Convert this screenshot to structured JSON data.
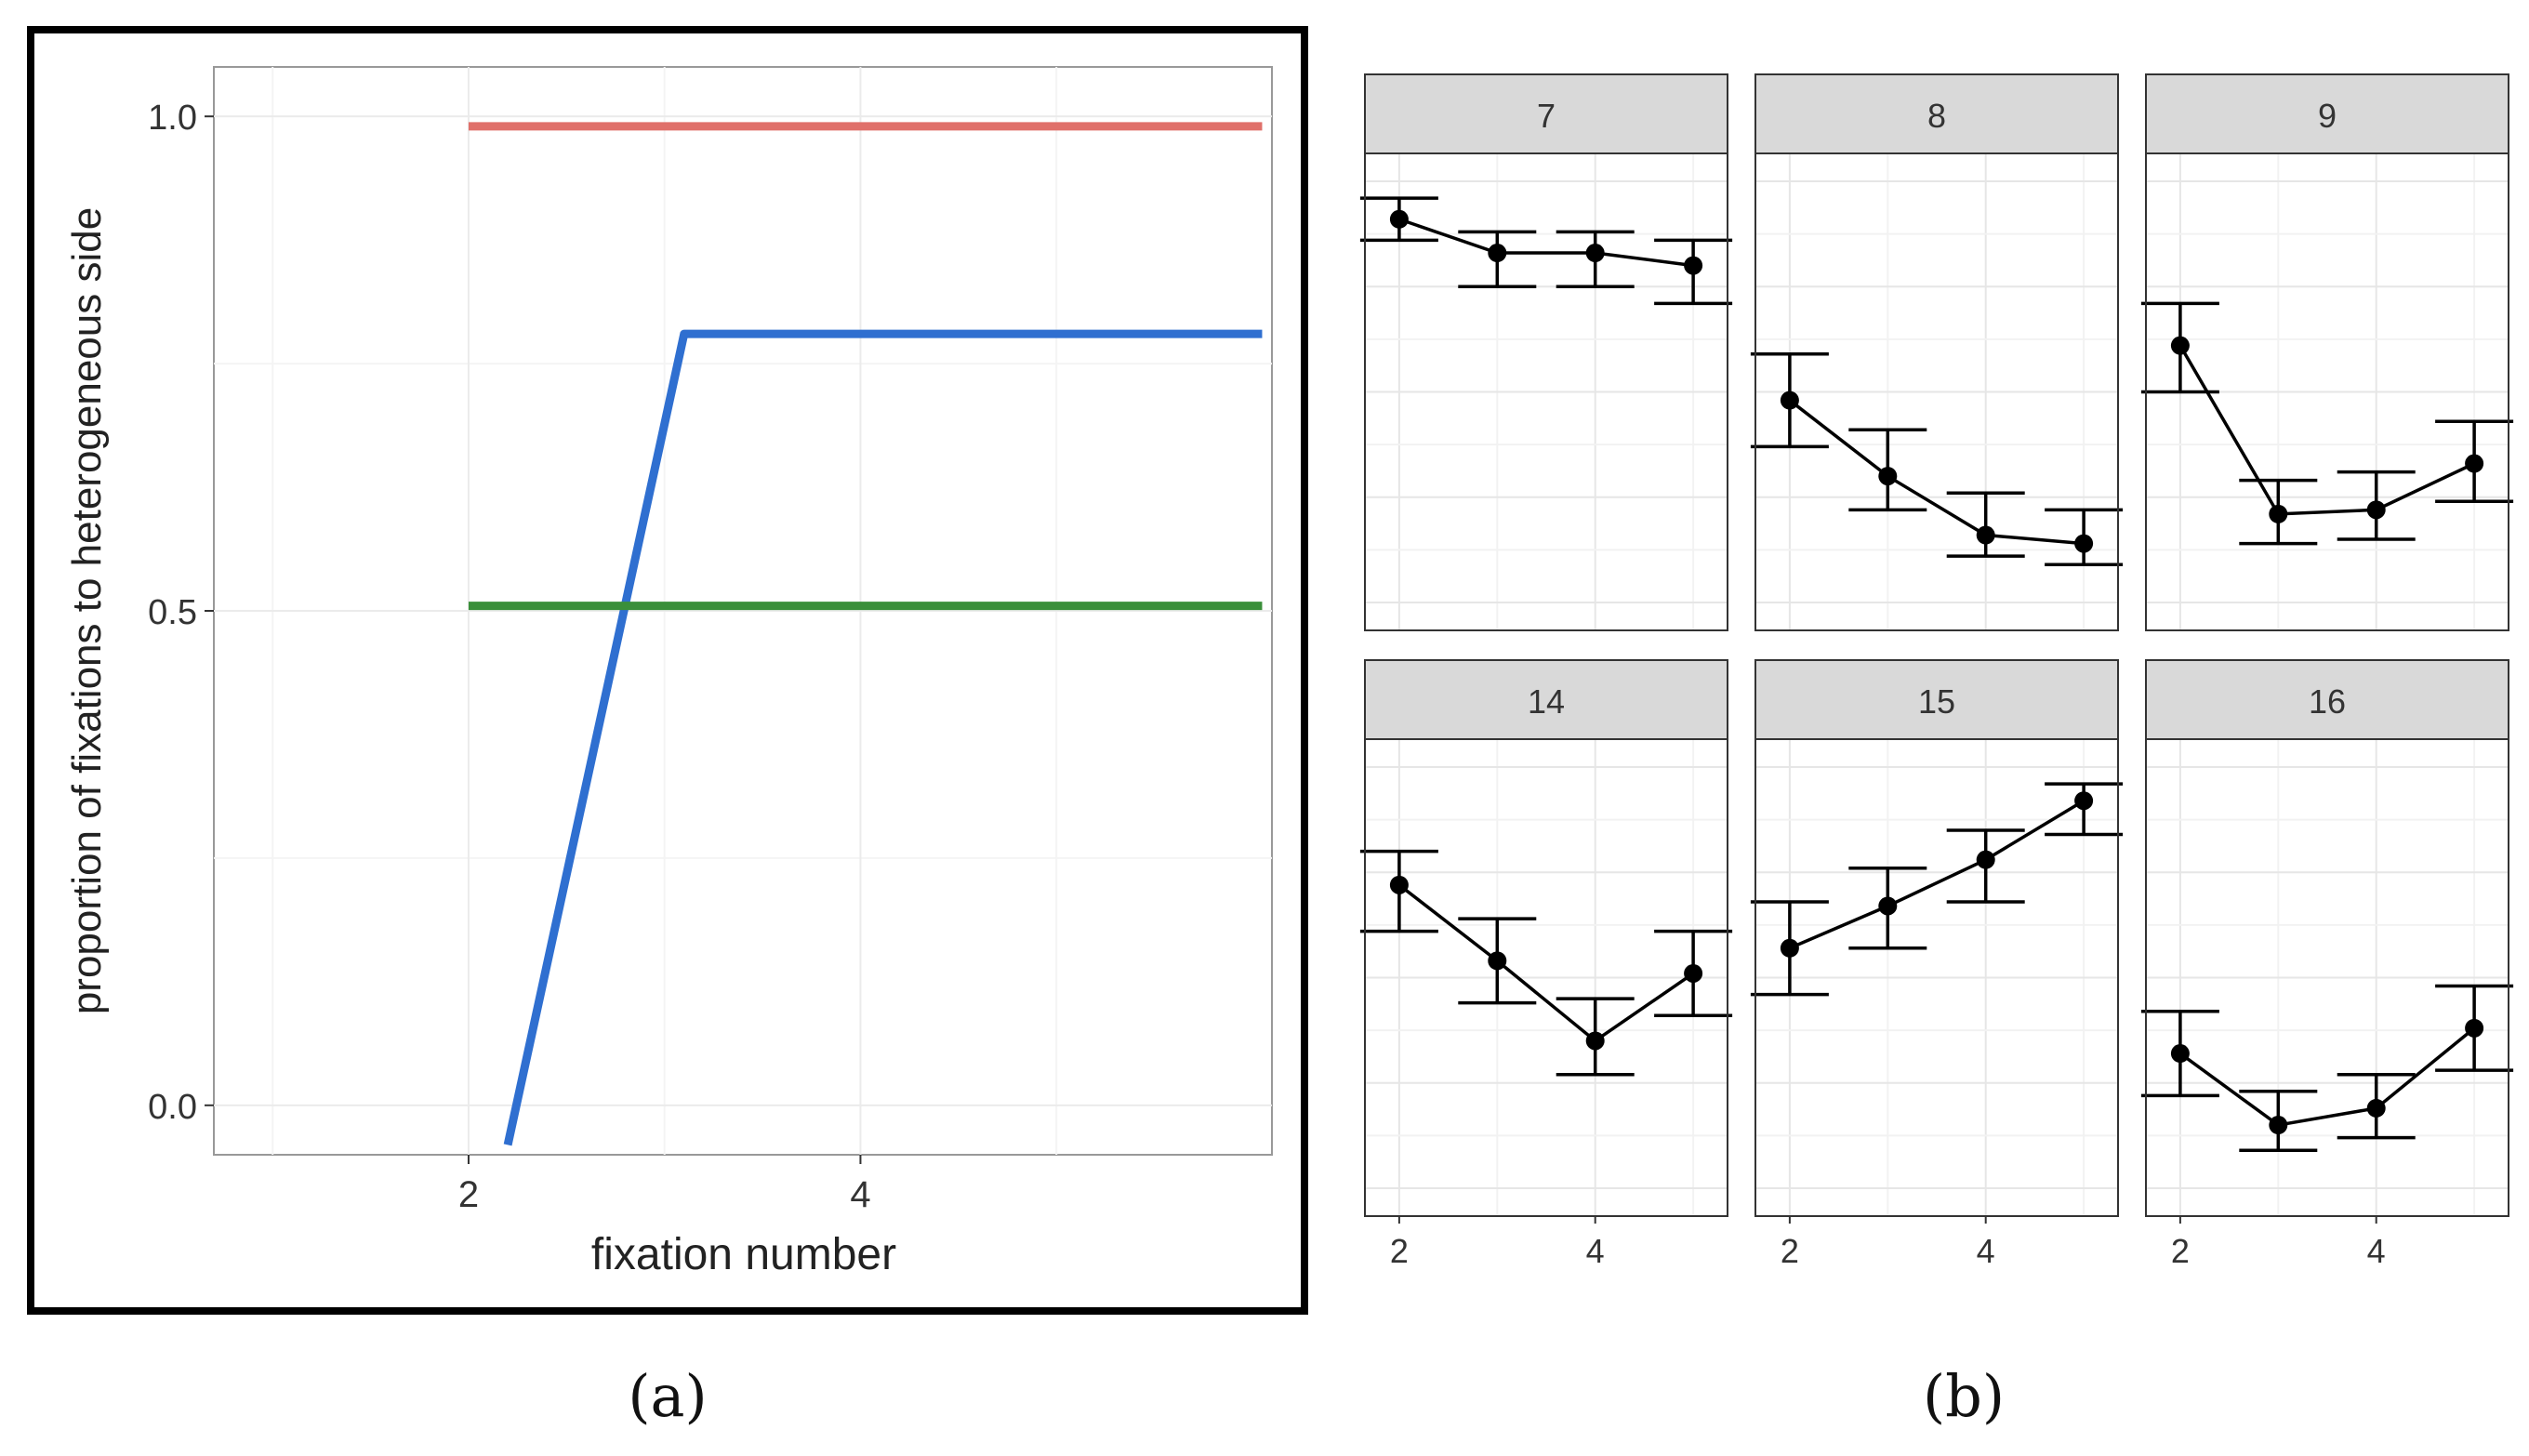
{
  "panel_a": {
    "caption": "(a)",
    "chart_data": {
      "type": "line",
      "title": "",
      "xlabel": "fixation number",
      "ylabel": "proportion of fixations to heterogeneous side",
      "xlim": [
        0.7,
        6.1
      ],
      "ylim": [
        -0.05,
        1.05
      ],
      "x_ticks": [
        2,
        4
      ],
      "y_ticks": [
        0.0,
        0.5,
        1.0
      ],
      "y_tick_labels": [
        "0.0",
        "0.5",
        "1.0"
      ],
      "grid": true,
      "legend": "none",
      "series": [
        {
          "color": "#e0706a",
          "x": [
            2,
            6.05
          ],
          "y": [
            0.99,
            0.99
          ]
        },
        {
          "color": "#2f6fd0",
          "x": [
            2.2,
            3.1,
            6.05
          ],
          "y": [
            -0.04,
            0.78,
            0.78
          ]
        },
        {
          "color": "#3a8f3a",
          "x": [
            2,
            6.05
          ],
          "y": [
            0.505,
            0.505
          ]
        }
      ]
    }
  },
  "panel_b": {
    "caption": "(b)",
    "chart_data": {
      "type": "line",
      "facets": [
        "7",
        "8",
        "9",
        "14",
        "15",
        "16"
      ],
      "x": [
        2,
        3,
        4,
        5
      ],
      "x_ticks": [
        2,
        4
      ],
      "xlim": [
        1.65,
        5.35
      ],
      "ylim": [
        0.0,
        1.0
      ],
      "grid": true,
      "series": [
        {
          "facet": "7",
          "y": [
            0.91,
            0.83,
            0.83,
            0.8
          ],
          "lo": [
            0.86,
            0.75,
            0.75,
            0.71
          ],
          "hi": [
            0.96,
            0.88,
            0.88,
            0.86
          ]
        },
        {
          "facet": "8",
          "y": [
            0.48,
            0.3,
            0.16,
            0.14
          ],
          "lo": [
            0.37,
            0.22,
            0.11,
            0.09
          ],
          "hi": [
            0.59,
            0.41,
            0.26,
            0.22
          ]
        },
        {
          "facet": "9",
          "y": [
            0.61,
            0.21,
            0.22,
            0.33
          ],
          "lo": [
            0.5,
            0.14,
            0.15,
            0.24
          ],
          "hi": [
            0.71,
            0.29,
            0.31,
            0.43
          ]
        },
        {
          "facet": "14",
          "y": [
            0.72,
            0.54,
            0.35,
            0.51
          ],
          "lo": [
            0.61,
            0.44,
            0.27,
            0.41
          ],
          "hi": [
            0.8,
            0.64,
            0.45,
            0.61
          ]
        },
        {
          "facet": "15",
          "y": [
            0.57,
            0.67,
            0.78,
            0.92
          ],
          "lo": [
            0.46,
            0.57,
            0.68,
            0.84
          ],
          "hi": [
            0.68,
            0.76,
            0.85,
            0.96
          ]
        },
        {
          "facet": "16",
          "y": [
            0.32,
            0.15,
            0.19,
            0.38
          ],
          "lo": [
            0.22,
            0.09,
            0.12,
            0.28
          ],
          "hi": [
            0.42,
            0.23,
            0.27,
            0.48
          ]
        }
      ]
    }
  }
}
